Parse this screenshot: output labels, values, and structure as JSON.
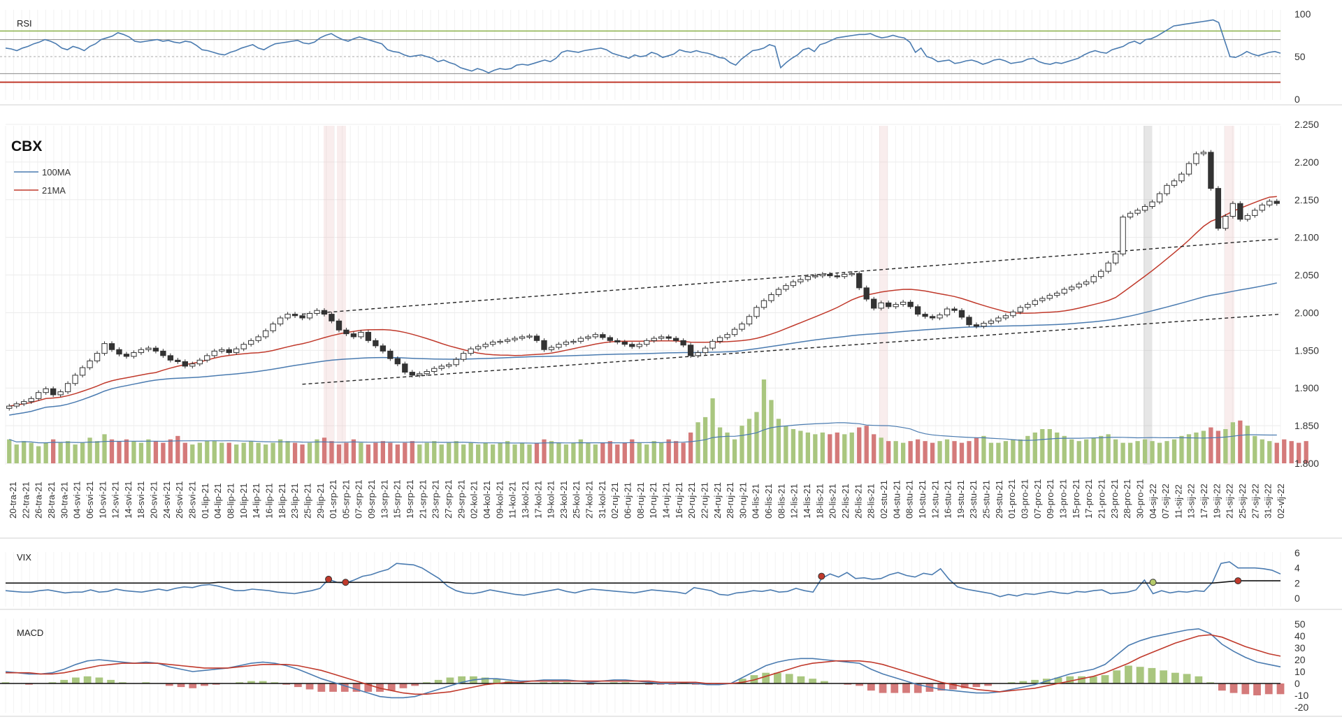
{
  "chart_data": {
    "type": "candlestick",
    "title": "CBX",
    "colors": {
      "ma100": "#4a7bb0",
      "ma21": "#c0392b",
      "up_volume": "#a9c67f",
      "down_volume": "#d47a7a",
      "rsi_line": "#4a7bb0",
      "rsi_upper": "#8ab04a",
      "rsi_lower": "#c0392b",
      "macd_line": "#4a7bb0",
      "signal_line": "#c0392b",
      "candle_up": "#ffffff",
      "candle_down": "#333333"
    },
    "legend": [
      "100MA",
      "21MA"
    ],
    "price": {
      "ylim": [
        1.8,
        2.25
      ],
      "yticks": [
        "1.800",
        "1.850",
        "1.900",
        "1.950",
        "2.000",
        "2.050",
        "2.100",
        "2.150",
        "2.200",
        "2.250"
      ],
      "close": [
        1.876,
        1.879,
        1.882,
        1.886,
        1.894,
        1.899,
        1.891,
        1.895,
        1.906,
        1.917,
        1.927,
        1.936,
        1.946,
        1.959,
        1.951,
        1.945,
        1.942,
        1.947,
        1.951,
        1.953,
        1.949,
        1.943,
        1.937,
        1.935,
        1.929,
        1.932,
        1.937,
        1.943,
        1.949,
        1.951,
        1.947,
        1.952,
        1.958,
        1.963,
        1.968,
        1.976,
        1.985,
        1.993,
        1.998,
        1.996,
        1.993,
        1.999,
        2.003,
        1.998,
        1.989,
        1.977,
        1.972,
        1.968,
        1.974,
        1.963,
        1.956,
        1.949,
        1.939,
        1.932,
        1.921,
        1.917,
        1.919,
        1.922,
        1.926,
        1.929,
        1.931,
        1.938,
        1.946,
        1.952,
        1.955,
        1.958,
        1.961,
        1.962,
        1.964,
        1.966,
        1.968,
        1.969,
        1.963,
        1.951,
        1.954,
        1.958,
        1.961,
        1.962,
        1.966,
        1.968,
        1.971,
        1.967,
        1.963,
        1.961,
        1.958,
        1.955,
        1.958,
        1.963,
        1.966,
        1.968,
        1.966,
        1.963,
        1.957,
        1.943,
        1.947,
        1.953,
        1.962,
        1.967,
        1.971,
        1.978,
        1.985,
        1.995,
        2.007,
        2.016,
        2.024,
        2.031,
        2.036,
        2.041,
        2.044,
        2.048,
        2.049,
        2.051,
        2.049,
        2.048,
        2.051,
        2.052,
        2.033,
        2.018,
        2.006,
        2.013,
        2.008,
        2.011,
        2.014,
        2.008,
        1.998,
        1.995,
        1.993,
        1.997,
        2.005,
        2.003,
        1.994,
        1.984,
        1.982,
        1.986,
        1.989,
        1.993,
        1.996,
        2.001,
        2.007,
        2.011,
        2.016,
        2.019,
        2.023,
        2.026,
        2.031,
        2.034,
        2.038,
        2.041,
        2.048,
        2.055,
        2.066,
        2.078,
        2.127,
        2.132,
        2.136,
        2.141,
        2.147,
        2.158,
        2.169,
        2.175,
        2.184,
        2.198,
        2.211,
        2.213,
        2.165,
        2.112,
        2.128,
        2.145,
        2.124,
        2.129,
        2.136,
        2.143,
        2.148,
        2.145
      ]
    },
    "volume": [
      14,
      11,
      13,
      12,
      10,
      12,
      14,
      12,
      13,
      11,
      12,
      15,
      13,
      17,
      14,
      13,
      14,
      13,
      12,
      14,
      13,
      12,
      14,
      16,
      12,
      11,
      12,
      13,
      13,
      12,
      12,
      11,
      12,
      13,
      12,
      11,
      12,
      14,
      13,
      12,
      11,
      12,
      14,
      15,
      13,
      11,
      12,
      14,
      12,
      11,
      12,
      13,
      12,
      11,
      12,
      13,
      11,
      12,
      13,
      11,
      12,
      13,
      11,
      12,
      11,
      12,
      11,
      12,
      13,
      11,
      12,
      11,
      12,
      14,
      13,
      12,
      11,
      12,
      14,
      12,
      11,
      12,
      13,
      11,
      12,
      14,
      12,
      11,
      13,
      12,
      14,
      13,
      12,
      18,
      24,
      27,
      38,
      21,
      18,
      14,
      22,
      26,
      30,
      49,
      37,
      26,
      22,
      20,
      19,
      18,
      17,
      18,
      17,
      18,
      17,
      18,
      21,
      22,
      17,
      15,
      13,
      13,
      12,
      13,
      14,
      13,
      12,
      13,
      14,
      13,
      12,
      13,
      15,
      16,
      12,
      12,
      13,
      14,
      14,
      16,
      18,
      20,
      20,
      18,
      16,
      14,
      13,
      14,
      15,
      16,
      17,
      14,
      12,
      12,
      13,
      14,
      13,
      12,
      13,
      14,
      16,
      17,
      18,
      19,
      21,
      19,
      20,
      24,
      25,
      22,
      16,
      14,
      13,
      12,
      14,
      13,
      12,
      13
    ],
    "date_labels": [
      "20-tra-21",
      "22-tra-21",
      "26-tra-21",
      "28-tra-21",
      "30-tra-21",
      "04-svi-21",
      "06-svi-21",
      "10-svi-21",
      "12-svi-21",
      "14-svi-21",
      "18-svi-21",
      "20-svi-21",
      "24-svi-21",
      "26-svi-21",
      "28-svi-21",
      "01-lip-21",
      "04-lip-21",
      "08-lip-21",
      "10-lip-21",
      "14-lip-21",
      "16-lip-21",
      "18-lip-21",
      "23-lip-21",
      "25-lip-21",
      "29-lip-21",
      "01-srp-21",
      "05-srp-21",
      "07-srp-21",
      "09-srp-21",
      "13-srp-21",
      "15-srp-21",
      "19-srp-21",
      "21-srp-21",
      "23-srp-21",
      "27-srp-21",
      "29-srp-21",
      "02-kol-21",
      "04-kol-21",
      "09-kol-21",
      "11-kol-21",
      "13-kol-21",
      "17-kol-21",
      "19-kol-21",
      "23-kol-21",
      "25-kol-21",
      "27-kol-21",
      "31-kol-21",
      "02-ruj-21",
      "06-ruj-21",
      "08-ruj-21",
      "10-ruj-21",
      "14-ruj-21",
      "16-ruj-21",
      "20-ruj-21",
      "22-ruj-21",
      "24-ruj-21",
      "28-ruj-21",
      "30-ruj-21",
      "04-lis-21",
      "06-lis-21",
      "08-lis-21",
      "12-lis-21",
      "14-lis-21",
      "18-lis-21",
      "20-lis-21",
      "22-lis-21",
      "26-lis-21",
      "28-lis-21",
      "02-stu-21",
      "04-stu-21",
      "08-stu-21",
      "10-stu-21",
      "12-stu-21",
      "16-stu-21",
      "19-stu-21",
      "23-stu-21",
      "25-stu-21",
      "29-stu-21",
      "01-pro-21",
      "03-pro-21",
      "07-pro-21",
      "09-pro-21",
      "13-pro-21",
      "15-pro-21",
      "17-pro-21",
      "21-pro-21",
      "23-pro-21",
      "28-pro-21",
      "30-pro-21",
      "04-sij-22",
      "07-sij-22",
      "11-sij-22",
      "13-sij-22",
      "17-sij-22",
      "19-sij-22",
      "21-sij-22",
      "25-sij-22",
      "27-sij-22",
      "31-sij-22",
      "02-vlj-22"
    ],
    "rsi": {
      "label": "RSI",
      "ylim": [
        0,
        100
      ],
      "yticks": [
        "0",
        "50",
        "100"
      ],
      "upper": 80,
      "lower": 20,
      "values": [
        60,
        59,
        57,
        60,
        62,
        65,
        67,
        70,
        68,
        65,
        60,
        58,
        62,
        60,
        57,
        62,
        65,
        70,
        72,
        74,
        78,
        76,
        73,
        68,
        67,
        68,
        69,
        70,
        68,
        69,
        67,
        66,
        68,
        67,
        63,
        58,
        57,
        55,
        53,
        52,
        55,
        57,
        60,
        62,
        64,
        60,
        58,
        62,
        65,
        66,
        67,
        68,
        69,
        66,
        65,
        67,
        72,
        75,
        77,
        73,
        70,
        68,
        71,
        73,
        71,
        69,
        67,
        65,
        58,
        56,
        55,
        52,
        50,
        51,
        52,
        50,
        48,
        44,
        46,
        43,
        41,
        37,
        35,
        33,
        36,
        34,
        31,
        34,
        36,
        35,
        36,
        40,
        41,
        40,
        42,
        44,
        46,
        44,
        48,
        55,
        57,
        56,
        55,
        57,
        58,
        59,
        60,
        58,
        54,
        52,
        50,
        48,
        52,
        50,
        51,
        55,
        53,
        49,
        51,
        53,
        58,
        56,
        55,
        57,
        55,
        54,
        52,
        49,
        48,
        43,
        40,
        47,
        52,
        57,
        58,
        60,
        64,
        62,
        37,
        43,
        48,
        52,
        58,
        60,
        56,
        64,
        66,
        69,
        72,
        73,
        74,
        75,
        76,
        76,
        77,
        74,
        72,
        73,
        75,
        73,
        72,
        67,
        55,
        60,
        50,
        48,
        44,
        45,
        46,
        42,
        43,
        45,
        46,
        44,
        41,
        43,
        46,
        47,
        45,
        42,
        43,
        44,
        47,
        48,
        44,
        42,
        41,
        43,
        42,
        44,
        46,
        48,
        52,
        55,
        57,
        55,
        54,
        58,
        60,
        62,
        66,
        68,
        65,
        70,
        71,
        74,
        78,
        82,
        86,
        87,
        88,
        89,
        90,
        91,
        92,
        93,
        90,
        70,
        50,
        49,
        52,
        56,
        53,
        51,
        53,
        55,
        56,
        54
      ]
    },
    "vix": {
      "label": "VIX",
      "ylim": [
        0,
        6
      ],
      "yticks": [
        "0",
        "2",
        "4",
        "6"
      ],
      "values": [
        1,
        0.9,
        0.8,
        0.8,
        1.0,
        1.1,
        0.9,
        0.7,
        0.8,
        0.8,
        1.1,
        0.8,
        0.9,
        1.2,
        1.0,
        0.9,
        0.8,
        1.0,
        1.2,
        1.0,
        1.3,
        1.5,
        1.4,
        1.7,
        1.8,
        1.6,
        1.3,
        1.0,
        1.0,
        1.2,
        1.1,
        1.0,
        0.8,
        0.7,
        0.6,
        0.8,
        1.0,
        1.3,
        2.5,
        2.1,
        2.0,
        2.4,
        2.9,
        3.1,
        3.5,
        3.8,
        4.6,
        4.5,
        4.4,
        4.0,
        3.3,
        2.6,
        1.6,
        1.0,
        0.7,
        0.6,
        0.8,
        1.1,
        0.9,
        0.7,
        0.5,
        0.4,
        0.6,
        0.8,
        1.0,
        1.2,
        0.9,
        0.7,
        1.0,
        1.2,
        1.1,
        1.0,
        0.9,
        0.8,
        0.7,
        0.9,
        1.1,
        1.0,
        0.9,
        0.8,
        0.6,
        1.4,
        1.2,
        1.0,
        0.5,
        0.4,
        0.7,
        0.8,
        1.0,
        0.9,
        1.1,
        0.8,
        0.9,
        1.3,
        1.0,
        0.8,
        2.6,
        3.2,
        2.8,
        3.4,
        2.6,
        2.7,
        2.5,
        2.6,
        3.1,
        3.4,
        3.0,
        2.8,
        3.3,
        3.1,
        3.9,
        2.5,
        1.5,
        1.2,
        1.0,
        0.8,
        0.6,
        0.2,
        0.5,
        0.3,
        0.6,
        0.5,
        0.7,
        0.9,
        0.7,
        0.6,
        0.9,
        0.8,
        1.0,
        1.1,
        0.6,
        0.7,
        0.8,
        1.1,
        2.4,
        0.6,
        1.0,
        0.7,
        0.9,
        0.8,
        1.0,
        0.9,
        2.1,
        4.6,
        4.8,
        4.0,
        4.0,
        4.0,
        3.9,
        3.7,
        3.2
      ],
      "baseline": [
        2.0,
        2.0,
        2.0,
        2.0,
        2.0,
        2.0,
        2.0,
        2.0,
        2.0,
        2.0,
        2.0,
        2.0,
        2.0,
        2.0,
        2.0,
        2.0,
        2.0,
        2.0,
        2.0,
        2.0,
        2.0,
        2.0,
        2.0,
        2.0,
        2.0,
        2.1,
        2.1,
        2.1,
        2.1,
        2.1,
        2.1,
        2.1,
        2.1,
        2.1,
        2.1,
        2.1,
        2.1,
        2.1,
        2.1,
        2.1,
        2.1,
        2.1,
        2.1,
        2.1,
        2.1,
        2.1,
        2.1,
        2.1,
        2.1,
        2.1,
        2.1,
        2.1,
        2.1,
        2.0,
        2.0,
        2.0,
        2.0,
        2.0,
        2.0,
        2.0,
        2.0,
        2.0,
        2.0,
        2.0,
        2.0,
        2.0,
        2.0,
        2.0,
        2.0,
        2.0,
        2.0,
        2.0,
        2.0,
        2.0,
        2.0,
        2.0,
        2.0,
        2.0,
        2.0,
        2.0,
        2.0,
        2.0,
        2.0,
        2.0,
        2.0,
        2.0,
        2.0,
        2.0,
        2.0,
        2.0,
        2.0,
        2.0,
        2.0,
        2.0,
        2.0,
        2.0,
        2.0,
        2.0,
        2.0,
        2.0,
        2.0,
        2.0,
        2.0,
        2.0,
        2.0,
        2.0,
        2.0,
        2.0,
        2.0,
        2.0,
        2.0,
        2.0,
        2.0,
        2.0,
        2.0,
        2.0,
        2.0,
        2.0,
        2.0,
        2.0,
        2.0,
        2.0,
        2.0,
        2.0,
        2.0,
        2.0,
        2.0,
        2.0,
        2.0,
        2.0,
        2.0,
        2.0,
        2.0,
        2.0,
        2.0,
        2.0,
        2.0,
        2.0,
        2.0,
        2.0,
        2.0,
        2.0,
        2.0,
        2.1,
        2.2,
        2.3,
        2.3,
        2.3,
        2.3,
        2.3,
        2.3
      ],
      "signals": [
        {
          "value": 2.5,
          "color": "#c0392b"
        },
        {
          "value": 2.1,
          "color": "#c0392b"
        },
        {
          "value": 2.9,
          "color": "#c0392b"
        },
        {
          "value": 2.1,
          "color": "#b5c96a"
        },
        {
          "value": 2.3,
          "color": "#c0392b"
        }
      ]
    },
    "macd": {
      "label": "MACD",
      "ylim": [
        -20,
        50
      ],
      "yticks": [
        "-20",
        "-10",
        "0",
        "10",
        "20",
        "30",
        "40",
        "50"
      ],
      "macd": [
        10,
        9,
        8,
        8,
        9,
        12,
        16,
        19,
        20,
        19,
        18,
        17,
        18,
        17,
        14,
        12,
        10,
        11,
        12,
        13,
        15,
        17,
        18,
        17,
        15,
        12,
        8,
        4,
        1,
        -2,
        -5,
        -8,
        -11,
        -12,
        -12,
        -11,
        -8,
        -5,
        -2,
        1,
        3,
        4,
        4,
        3,
        2,
        2,
        3,
        3,
        3,
        2,
        1,
        2,
        3,
        3,
        2,
        1,
        0,
        0,
        1,
        0,
        -1,
        -1,
        0,
        5,
        10,
        15,
        18,
        20,
        21,
        21,
        20,
        19,
        18,
        17,
        12,
        8,
        5,
        2,
        -1,
        -3,
        -5,
        -6,
        -7,
        -8,
        -8,
        -7,
        -5,
        -3,
        -1,
        2,
        5,
        8,
        10,
        12,
        16,
        24,
        32,
        36,
        39,
        41,
        43,
        45,
        46,
        42,
        33,
        27,
        22,
        18,
        16,
        14
      ],
      "signal": [
        9,
        9,
        9,
        8,
        8,
        9,
        11,
        13,
        15,
        16,
        17,
        17,
        17,
        17,
        16,
        15,
        14,
        13,
        13,
        13,
        14,
        15,
        16,
        16,
        16,
        15,
        13,
        11,
        8,
        5,
        2,
        -1,
        -4,
        -6,
        -8,
        -9,
        -9,
        -8,
        -7,
        -5,
        -3,
        -1,
        0,
        1,
        1,
        2,
        2,
        2,
        2,
        2,
        2,
        2,
        2,
        2,
        2,
        2,
        1,
        1,
        1,
        1,
        0,
        0,
        0,
        1,
        3,
        6,
        9,
        12,
        15,
        17,
        18,
        19,
        19,
        19,
        18,
        16,
        13,
        10,
        7,
        4,
        1,
        -1,
        -3,
        -5,
        -6,
        -7,
        -6,
        -5,
        -4,
        -2,
        0,
        2,
        4,
        6,
        9,
        13,
        17,
        22,
        26,
        30,
        34,
        37,
        40,
        41,
        39,
        35,
        31,
        28,
        25,
        23
      ],
      "histogram": [
        1,
        0,
        -1,
        0,
        1,
        3,
        5,
        6,
        5,
        3,
        1,
        0,
        1,
        0,
        -2,
        -3,
        -4,
        -2,
        -1,
        0,
        1,
        2,
        2,
        1,
        -1,
        -3,
        -5,
        -7,
        -7,
        -7,
        -7,
        -7,
        -7,
        -6,
        -4,
        -2,
        1,
        3,
        5,
        6,
        6,
        5,
        4,
        2,
        1,
        0,
        1,
        1,
        1,
        0,
        -1,
        0,
        1,
        1,
        0,
        -1,
        -1,
        -1,
        0,
        -1,
        -1,
        -1,
        0,
        4,
        7,
        9,
        9,
        8,
        6,
        4,
        2,
        0,
        -1,
        -2,
        -6,
        -8,
        -8,
        -8,
        -8,
        -7,
        -6,
        -5,
        -4,
        -3,
        -2,
        0,
        1,
        2,
        3,
        4,
        5,
        6,
        6,
        6,
        7,
        11,
        15,
        14,
        13,
        11,
        9,
        8,
        6,
        1,
        -6,
        -8,
        -9,
        -10,
        -9,
        -9
      ]
    }
  }
}
